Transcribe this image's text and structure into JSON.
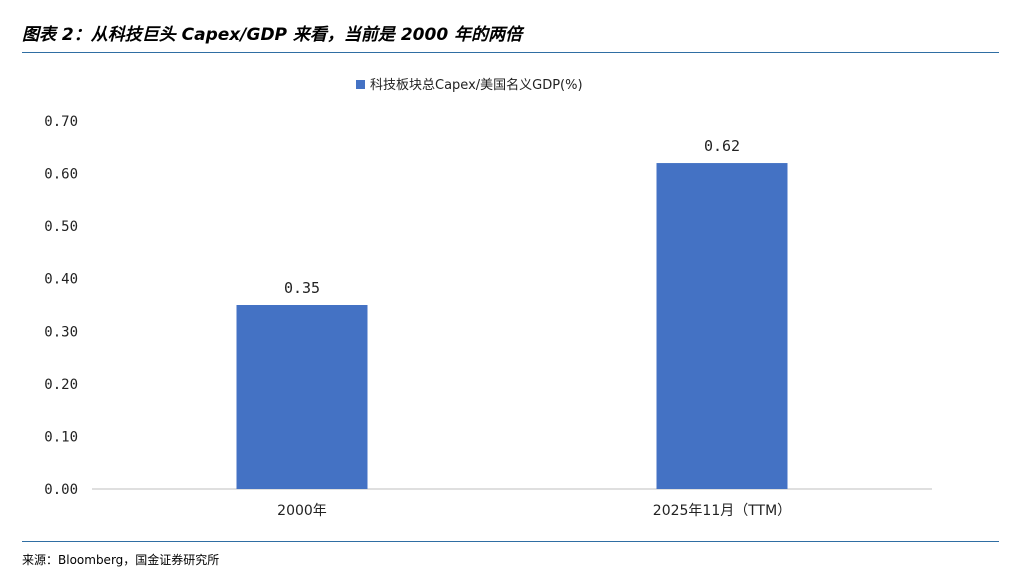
{
  "figure_title": "图表 2：从科技巨头 Capex/GDP 来看，当前是 2000 年的两倍",
  "source": "来源：Bloomberg，国金证券研究所",
  "chart_data": {
    "type": "bar",
    "categories": [
      "2000年",
      "2025年11月（TTM）"
    ],
    "series": [
      {
        "name": "科技板块总Capex/美国名义GDP(%)",
        "values": [
          0.35,
          0.62
        ],
        "color": "#4472c4"
      }
    ],
    "data_labels": [
      "0.35",
      "0.62"
    ],
    "yticks": [
      "0.00",
      "0.10",
      "0.20",
      "0.30",
      "0.40",
      "0.50",
      "0.60",
      "0.70"
    ],
    "ylim": [
      0,
      0.7
    ],
    "legend_position": "top-center",
    "grid": false
  }
}
